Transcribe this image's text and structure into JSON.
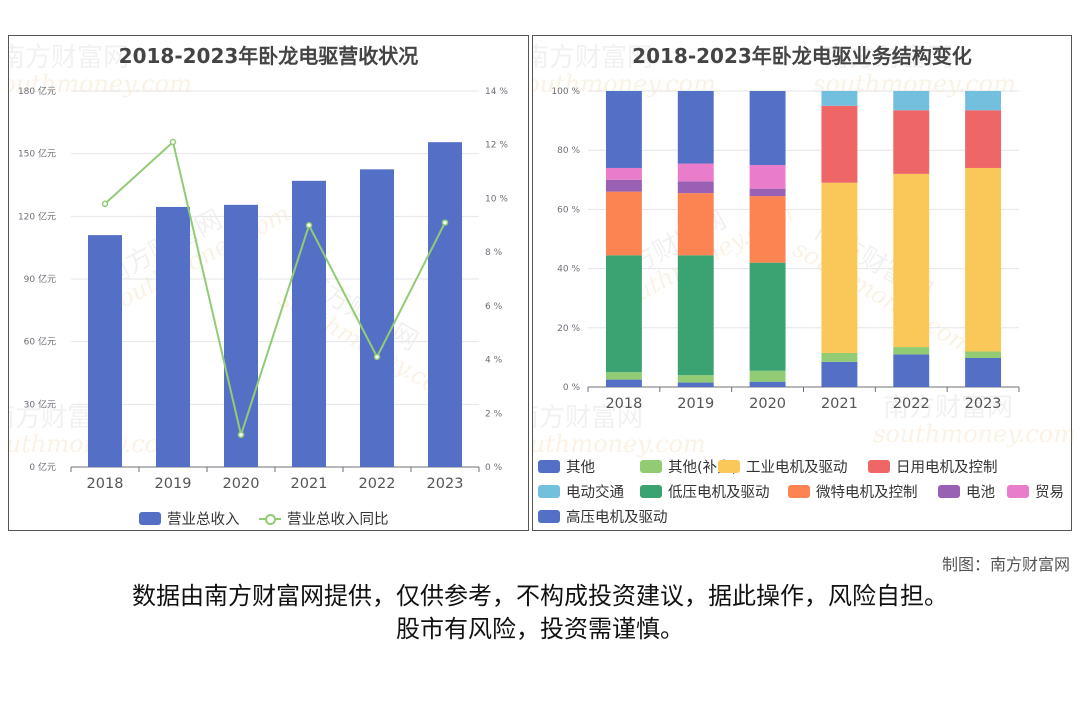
{
  "colors": {
    "blue": "#5470c6",
    "green_light": "#91cc75",
    "yellow": "#fac858",
    "red": "#ee6666",
    "cyan": "#73c0de",
    "green_dark": "#3ba272",
    "orange": "#fc8452",
    "purple": "#9a60b4",
    "pink": "#ea7ccc",
    "grid": "#e6e6e6"
  },
  "watermark": {
    "cn": "南方财富网",
    "en": "southmoney.com"
  },
  "chart_data": [
    {
      "type": "bar",
      "title": "2018-2023年卧龙电驱营收状况",
      "categories": [
        "2018",
        "2019",
        "2020",
        "2021",
        "2022",
        "2023"
      ],
      "series": [
        {
          "name": "营业总收入",
          "kind": "bar",
          "axis": "left",
          "values": [
            111,
            124.5,
            125.5,
            137,
            142.5,
            155.5
          ]
        },
        {
          "name": "营业总收入同比",
          "kind": "line",
          "axis": "right",
          "values": [
            9.8,
            12.1,
            1.2,
            9.0,
            4.1,
            9.1
          ]
        }
      ],
      "y_left": {
        "min": 0,
        "max": 180,
        "ticks": [
          0,
          30,
          60,
          90,
          120,
          150,
          180
        ],
        "unit": "亿元"
      },
      "y_right": {
        "min": 0,
        "max": 14,
        "ticks": [
          0,
          2,
          4,
          6,
          8,
          10,
          12,
          14
        ],
        "unit": "%"
      },
      "grid": true,
      "legend_position": "bottom"
    },
    {
      "type": "bar",
      "stacked": true,
      "title": "2018-2023年卧龙电驱业务结构变化",
      "categories": [
        "2018",
        "2019",
        "2020",
        "2021",
        "2022",
        "2023"
      ],
      "series": [
        {
          "name": "其他",
          "color_key": "blue",
          "values": [
            2.5,
            1.5,
            1.8,
            8.5,
            11,
            9.8
          ]
        },
        {
          "name": "其他(补充)",
          "color_key": "green_light",
          "values": [
            2.5,
            2.5,
            3.7,
            3.0,
            2.5,
            2.2
          ]
        },
        {
          "name": "工业电机及驱动",
          "color_key": "yellow",
          "values": [
            0,
            0,
            0,
            57.5,
            58.5,
            62
          ]
        },
        {
          "name": "日用电机及控制",
          "color_key": "red",
          "values": [
            0,
            0,
            0,
            26,
            21.5,
            19.5
          ]
        },
        {
          "name": "电动交通",
          "color_key": "cyan",
          "values": [
            0,
            0,
            0,
            5,
            6.5,
            6.5
          ]
        },
        {
          "name": "低压电机及驱动",
          "color_key": "green_dark",
          "values": [
            39.5,
            40.5,
            36.5,
            0,
            0,
            0
          ]
        },
        {
          "name": "微特电机及控制",
          "color_key": "orange",
          "values": [
            21.5,
            21,
            22.5,
            0,
            0,
            0
          ]
        },
        {
          "name": "电池",
          "color_key": "purple",
          "values": [
            4,
            4,
            2.5,
            0,
            0,
            0
          ]
        },
        {
          "name": "贸易",
          "color_key": "pink",
          "values": [
            4,
            6,
            8,
            0,
            0,
            0
          ]
        },
        {
          "name": "高压电机及驱动",
          "color_key": "blue",
          "values": [
            26,
            24.5,
            25,
            0,
            0,
            0
          ]
        }
      ],
      "y": {
        "min": 0,
        "max": 100,
        "ticks": [
          0,
          20,
          40,
          60,
          80,
          100
        ],
        "unit": "%"
      },
      "grid": true,
      "legend_position": "bottom"
    }
  ],
  "credit": "制图：南方财富网",
  "disclaimer": {
    "line1": "数据由南方财富网提供，仅供参考，不构成投资建议，据此操作，风险自担。",
    "line2": "股市有风险，投资需谨慎。"
  }
}
